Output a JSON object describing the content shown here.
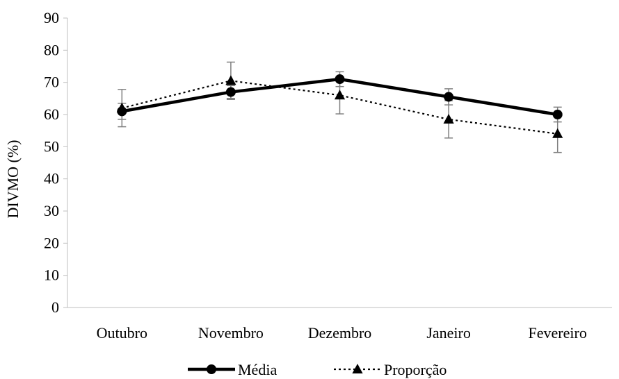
{
  "chart_data": {
    "type": "line",
    "title": "",
    "xlabel": "",
    "ylabel": "DIVMO (%)",
    "ylim": [
      0,
      90
    ],
    "yticks": [
      0,
      10,
      20,
      30,
      40,
      50,
      60,
      70,
      80,
      90
    ],
    "categories": [
      "Outubro",
      "Novembro",
      "Dezembro",
      "Janeiro",
      "Fevereiro"
    ],
    "grid": false,
    "legend_position": "bottom",
    "series": [
      {
        "name": "Média",
        "marker": "circle",
        "line_style": "solid",
        "color": "#000000",
        "values": [
          61,
          67,
          71,
          65.5,
          60
        ],
        "error": [
          2.5,
          2,
          2.3,
          2.5,
          2.3
        ]
      },
      {
        "name": "Proporção",
        "marker": "triangle",
        "line_style": "dotted",
        "color": "#000000",
        "values": [
          62,
          70.5,
          66,
          58.5,
          54
        ],
        "error": [
          5.8,
          5.8,
          5.8,
          5.8,
          5.8
        ]
      }
    ]
  }
}
